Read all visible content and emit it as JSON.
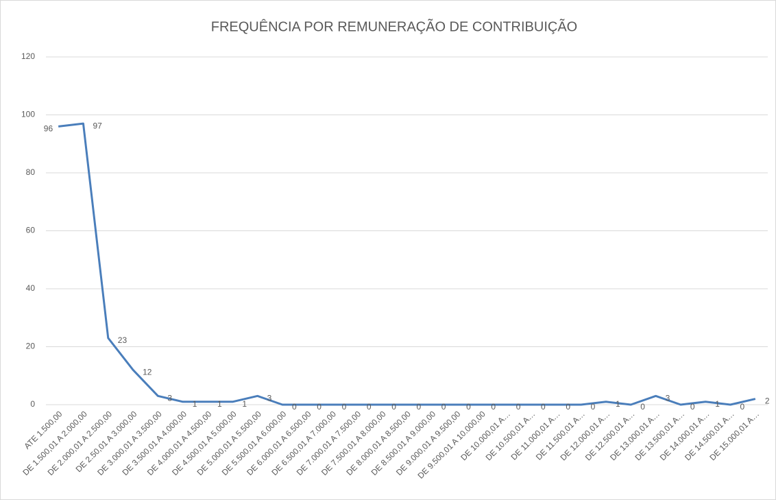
{
  "chart_data": {
    "type": "line",
    "title": "FREQUÊNCIA POR REMUNERAÇÃO DE CONTRIBUIÇÃO",
    "categories": [
      "ATE 1.500,00",
      "DE 1.500,01 A 2.000,00",
      "DE 2.000,01 A 2.500,00",
      "DE 2.50,01 A 3.000,00",
      "DE 3.000,01 A 3.500,00",
      "DE 3.500,01 A 4.000,00",
      "DE 4.000,01 A 4.500,00",
      "DE 4.500,01 A 5.000,00",
      "DE 5.000,01 A 5.500,00",
      "DE 5.500,01 A 6.000,00",
      "DE 6.000,01 A 6.500,00",
      "DE 6.500,01 A 7.000,00",
      "DE 7.000,01 A 7.500,00",
      "DE 7.500,01 A 8.000,00",
      "DE 8.000,01 A 8.500,00",
      "DE 8.500,01 A 9.000,00",
      "DE 9.000,01 A 9.500,00",
      "DE 9.500,01 A 10.000,00",
      "DE 10.000,01 A…",
      "DE 10.500,01 A…",
      "DE 11.000,01 A…",
      "DE 11.500,01 A…",
      "DE 12.000,01 A…",
      "DE 12.500,01 A…",
      "DE 13.000,01 A…",
      "DE 13.500,01 A…",
      "DE 14.000,01 A…",
      "DE 14.500,01 A…",
      "DE 15.000,01 A…"
    ],
    "values": [
      96,
      97,
      23,
      12,
      3,
      1,
      1,
      1,
      3,
      0,
      0,
      0,
      0,
      0,
      0,
      0,
      0,
      0,
      0,
      0,
      0,
      0,
      1,
      0,
      3,
      0,
      1,
      0,
      2
    ],
    "color": "#4a7ebb",
    "ylim": [
      0,
      120
    ],
    "yticks": [
      0,
      20,
      40,
      60,
      80,
      100,
      120
    ],
    "grid": true
  }
}
